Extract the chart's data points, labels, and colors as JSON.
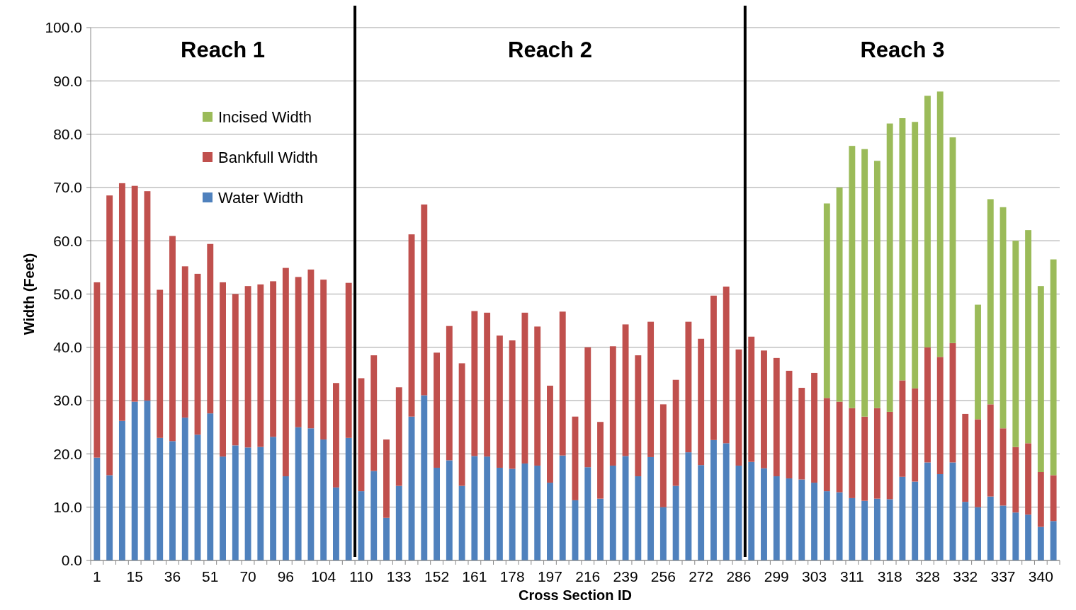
{
  "chart_data": {
    "type": "bar",
    "stacked": true,
    "xlabel": "Cross Section ID",
    "ylabel": "Width (Feet)",
    "categories": [
      "1",
      null,
      null,
      "15",
      null,
      null,
      "36",
      null,
      null,
      "51",
      null,
      null,
      "70",
      null,
      null,
      "96",
      null,
      null,
      "104",
      null,
      null,
      "110",
      null,
      null,
      "133",
      null,
      null,
      "152",
      null,
      null,
      "161",
      null,
      null,
      "178",
      null,
      null,
      "197",
      null,
      null,
      "216",
      null,
      null,
      "239",
      null,
      null,
      "256",
      null,
      null,
      "272",
      null,
      null,
      "286",
      null,
      null,
      "299",
      null,
      null,
      "303",
      null,
      null,
      "311",
      null,
      null,
      "318",
      null,
      null,
      "328",
      null,
      null,
      "332",
      null,
      null,
      "337",
      null,
      null,
      "340",
      null
    ],
    "series": [
      {
        "name": "Water Width",
        "color": "#4f81bd",
        "values": [
          19.3,
          16,
          26.2,
          29.8,
          30,
          23,
          22.4,
          26.8,
          23.6,
          27.6,
          19.5,
          21.6,
          21.2,
          21.3,
          23.2,
          15.8,
          25,
          24.8,
          22.7,
          13.7,
          23,
          13,
          16.8,
          8,
          14,
          27,
          31,
          17.4,
          18.8,
          14,
          19.6,
          19.5,
          17.4,
          17.2,
          18.2,
          17.8,
          14.6,
          19.7,
          11.3,
          17.5,
          11.6,
          17.8,
          19.6,
          15.8,
          19.4,
          10,
          14,
          20.3,
          17.9,
          22.6,
          22,
          17.8,
          18.5,
          17.3,
          15.8,
          15.4,
          15.2,
          14.6,
          13,
          12.8,
          11.7,
          11.2,
          11.6,
          11.5,
          15.7,
          14.8,
          18.4,
          16.2,
          18.4,
          11,
          10,
          12,
          10.3,
          9,
          8.6,
          6.3,
          7.4
        ]
      },
      {
        "name": "Bankfull Width",
        "color": "#c0504d",
        "values": [
          32.9,
          52.5,
          44.6,
          40.5,
          39.3,
          27.8,
          38.5,
          28.4,
          30.2,
          31.8,
          32.7,
          28.4,
          30.3,
          30.5,
          29.2,
          39.1,
          28.2,
          29.8,
          30,
          19.6,
          29.1,
          21.2,
          21.7,
          14.7,
          18.5,
          34.2,
          35.8,
          21.6,
          25.2,
          23,
          27.2,
          27,
          24.8,
          24.1,
          28.3,
          26.1,
          18.2,
          27,
          15.7,
          22.5,
          14.4,
          22.4,
          24.7,
          22.7,
          25.4,
          19.3,
          19.9,
          24.5,
          23.7,
          27.1,
          29.4,
          21.8,
          23.5,
          22.1,
          22.2,
          20.2,
          17.2,
          20.6,
          17.5,
          17,
          16.9,
          15.8,
          17,
          16.4,
          18.1,
          17.5,
          21.6,
          22,
          22.4,
          16.5,
          16.5,
          17.3,
          14.5,
          12.3,
          13.4,
          10.3,
          8.6
        ]
      },
      {
        "name": "Incised Width",
        "color": "#9bbb59",
        "values": [
          null,
          null,
          null,
          null,
          null,
          null,
          null,
          null,
          null,
          null,
          null,
          null,
          null,
          null,
          null,
          null,
          null,
          null,
          null,
          null,
          null,
          null,
          null,
          null,
          null,
          null,
          null,
          null,
          null,
          null,
          null,
          null,
          null,
          null,
          null,
          null,
          null,
          null,
          null,
          null,
          null,
          null,
          null,
          null,
          null,
          null,
          null,
          null,
          null,
          null,
          null,
          null,
          null,
          null,
          null,
          null,
          null,
          null,
          36.5,
          40.2,
          49.2,
          50.2,
          46.4,
          54.1,
          49.2,
          50,
          47.2,
          49.8,
          38.6,
          null,
          21.5,
          38.5,
          41.5,
          38.7,
          40,
          34.9,
          40.5
        ]
      }
    ],
    "ylim": [
      0,
      100
    ],
    "yticks": [
      {
        "value": 0,
        "label": "0.0"
      },
      {
        "value": 10,
        "label": "10.0"
      },
      {
        "value": 20,
        "label": "20.0"
      },
      {
        "value": 30,
        "label": "30.0"
      },
      {
        "value": 40,
        "label": "40.0"
      },
      {
        "value": 50,
        "label": "50.0"
      },
      {
        "value": 60,
        "label": "60.0"
      },
      {
        "value": 70,
        "label": "70.0"
      },
      {
        "value": 80,
        "label": "80.0"
      },
      {
        "value": 90,
        "label": "90.0"
      },
      {
        "value": 100,
        "label": "100.0"
      }
    ],
    "grid": "y",
    "legend": "top left",
    "annotations": [
      "Reach 1",
      "Reach 2",
      "Reach 3"
    ]
  }
}
